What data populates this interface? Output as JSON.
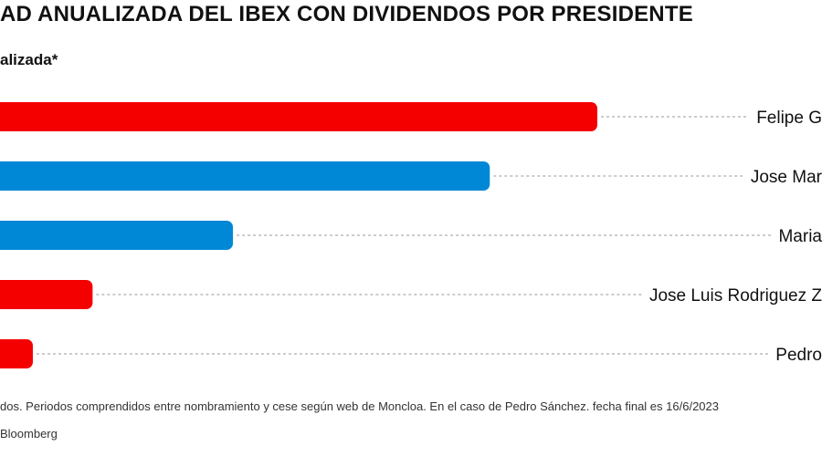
{
  "header": {
    "title": "AD ANUALIZADA DEL IBEX CON DIVIDENDOS POR PRESIDENTE",
    "subtitle": "alizada*"
  },
  "footer": {
    "note": "dos. Periodos comprendidos entre nombramiento y cese según web de Moncloa. En el caso de Pedro Sánchez. fecha final es 16/6/2023",
    "source": "Bloomberg"
  },
  "colors": {
    "psoe_red": "#f40000",
    "pp_blue": "#0088d6",
    "leader_line": "#9a9a9a"
  },
  "chart_data": {
    "type": "bar",
    "orientation": "horizontal",
    "categories": [
      "Felipe G",
      "Jose Mar",
      "Maria",
      "Jose Luis Rodriguez Z",
      "Pedro"
    ],
    "values": [
      100,
      82,
      39,
      15.5,
      5.5
    ],
    "bar_colors": [
      "#f40000",
      "#0088d6",
      "#0088d6",
      "#f40000",
      "#f40000"
    ],
    "xlim": [
      0,
      100
    ],
    "title": "",
    "xlabel": "",
    "ylabel": "",
    "grid": false
  }
}
